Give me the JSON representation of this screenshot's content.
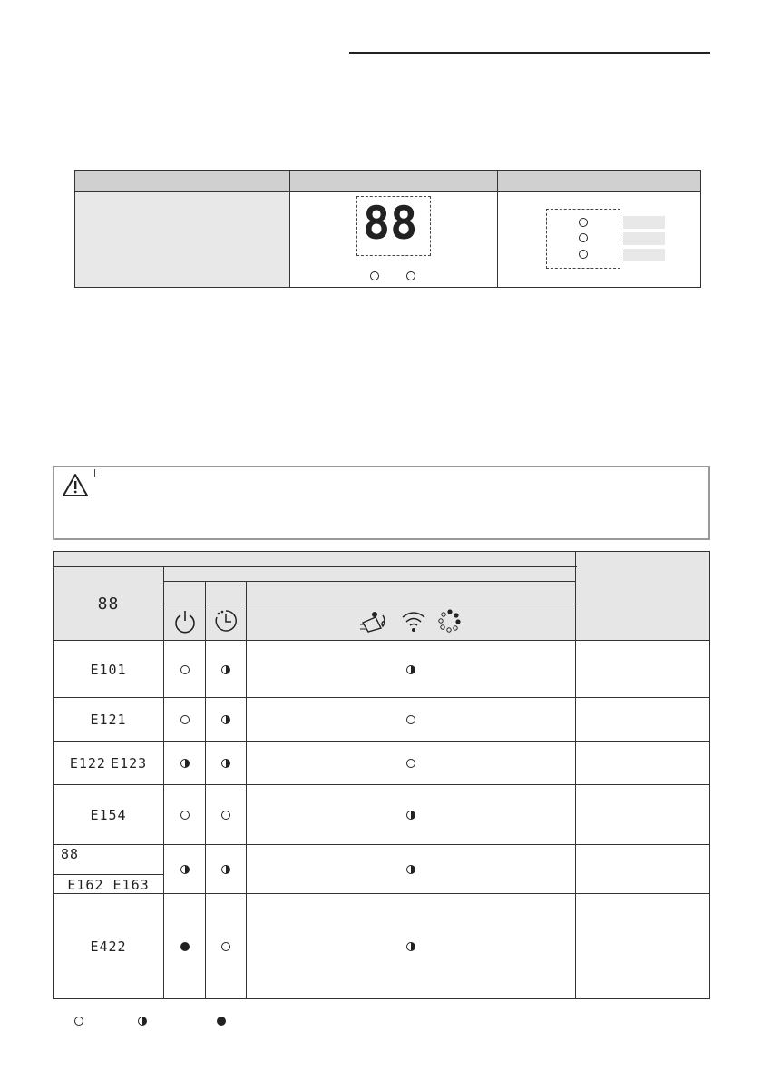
{
  "display_table": {
    "digits": "88"
  },
  "error_table": {
    "header_display": "88",
    "header_icons": [
      "power-icon",
      "timer-icon",
      "plug-sun-icon",
      "wifi-icon",
      "dots-ring-icon"
    ],
    "rows": [
      {
        "codes": [
          "E101"
        ],
        "power": "off",
        "timer": "blink",
        "combined": "blink"
      },
      {
        "codes": [
          "E121"
        ],
        "power": "off",
        "timer": "blink",
        "combined": "off"
      },
      {
        "codes": [
          "E122",
          "E123"
        ],
        "power": "blink",
        "timer": "blink",
        "combined": "off"
      },
      {
        "codes": [
          "E154"
        ],
        "power": "off",
        "timer": "off",
        "combined": "blink"
      },
      {
        "codes": [
          "88",
          "E162 E163"
        ],
        "power": "blink",
        "timer": "blink",
        "combined": "blink"
      },
      {
        "codes": [
          "E422"
        ],
        "power": "on",
        "timer": "off",
        "combined": "blink"
      }
    ]
  },
  "legend": [
    "off",
    "blink",
    "on"
  ]
}
